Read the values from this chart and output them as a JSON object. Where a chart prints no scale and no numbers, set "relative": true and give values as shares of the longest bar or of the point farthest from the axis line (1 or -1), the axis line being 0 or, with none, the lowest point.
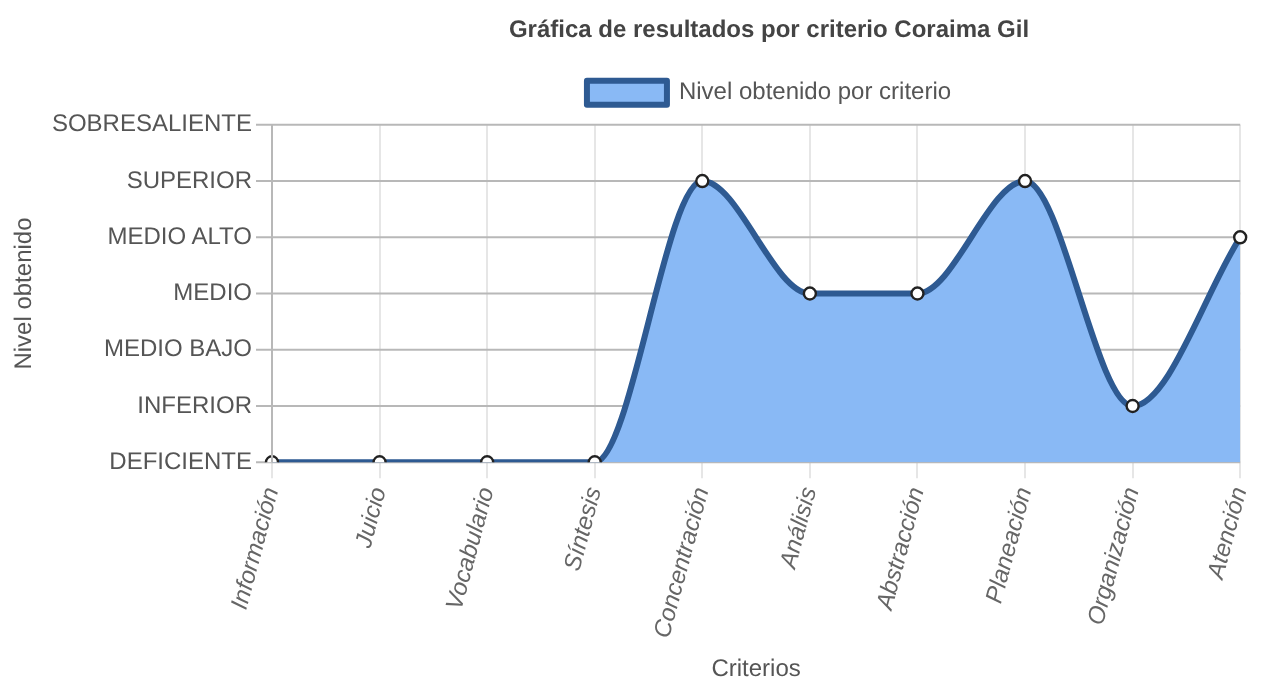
{
  "chart_data": {
    "type": "area",
    "title": "Gráfica de resultados por criterio Coraima Gil",
    "xlabel": "Criterios",
    "relative": true,
    "categories": [
      "Información",
      "Juicio",
      "Vocabulario",
      "Síntesis",
      "Concentración",
      "Análisis",
      "Abstracción",
      "Planeación",
      "Organización",
      "Atención"
    ],
    "series": [
      {
        "name": "Nivel obtenido por criterio",
        "color": "#89b9f5",
        "values": [
          0,
          0,
          0,
          0,
          1,
          0.6,
          0.6,
          1,
          0.2,
          0.8
        ]
      }
    ],
    "annotations": [
      "Nivel obtenido",
      "DEFICIENTE",
      "INFERIOR",
      "MEDIO BAJO",
      "MEDIO",
      "MEDIO ALTO",
      "SUPERIOR",
      "SOBRESALIENTE"
    ],
    "grid": true,
    "legend": "top",
    "marker": "circle",
    "line_style": "solid"
  }
}
